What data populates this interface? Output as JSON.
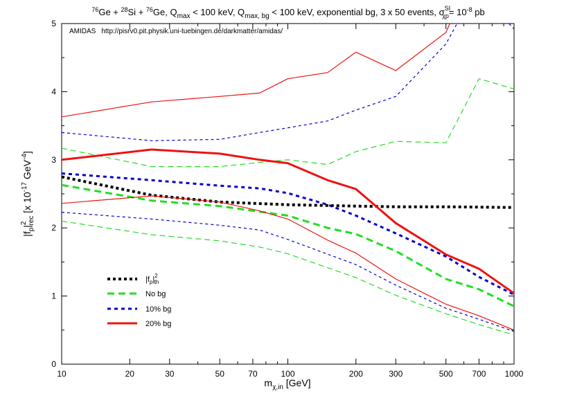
{
  "title": {
    "p1": "76",
    "t1": "Ge + ",
    "p2": "28",
    "t2": "Si + ",
    "p3": "76",
    "t3": "Ge, Q",
    "s1": "max",
    "t4": " < 100 keV, Q",
    "s2": "max, bg",
    "t5": " < 100 keV, exponential bg, 3 x 50 events, σ",
    "sup": "SI",
    "sub": "χp",
    "t6": "= 10",
    "exp": "-8",
    "t7": " pb"
  },
  "annotation": {
    "program": "AMIDAS",
    "url": "http://pisrv0.pit.physik.uni-tuebingen.de/darkmatter/amidas/"
  },
  "xaxis": {
    "label_main": "m",
    "label_sub": "χ,in",
    "label_unit": " [GeV]"
  },
  "yaxis": {
    "label_a": "|f",
    "label_b": "p",
    "label_c": "|",
    "label_sup": "2",
    "label_sub": "rec",
    "label_d": "  [x 10",
    "label_e": "-17",
    "label_f": " GeV",
    "label_g": "-4",
    "label_h": "]"
  },
  "legend": {
    "th_a": "|f",
    "th_b": "p",
    "th_c": "|",
    "th_sup": "2",
    "th_sub": "th",
    "nobg": "No bg",
    "bg10": "10% bg",
    "bg20": "20% bg"
  },
  "colors": {
    "theory": "#000000",
    "nobg": "#22dd22",
    "bg10": "#0000cc",
    "bg20": "#ee1111"
  },
  "chart_data": {
    "type": "line",
    "x_scale": "log",
    "xlim": [
      10,
      1000
    ],
    "ylim": [
      0,
      5
    ],
    "x_ticks": [
      "10",
      "20",
      "30",
      "50",
      "70",
      "100",
      "200",
      "300",
      "500",
      "700",
      "1000"
    ],
    "y_ticks": [
      "0",
      "1",
      "2",
      "3",
      "4",
      "5"
    ],
    "grid": false,
    "legend_position": "bottom-left",
    "series": [
      {
        "name": "theory",
        "style": "dotted",
        "color_key": "theory",
        "band": "central",
        "x": [
          10,
          25,
          50,
          100,
          200,
          300,
          500,
          1000
        ],
        "y": [
          2.75,
          2.48,
          2.38,
          2.34,
          2.32,
          2.31,
          2.31,
          2.3
        ]
      },
      {
        "name": "No bg",
        "style": "dashed",
        "color_key": "nobg",
        "band": "central",
        "x": [
          10,
          25,
          50,
          100,
          150,
          200,
          300,
          500,
          700,
          1000
        ],
        "y": [
          2.63,
          2.4,
          2.32,
          2.18,
          2.0,
          1.91,
          1.66,
          1.25,
          1.1,
          0.85
        ]
      },
      {
        "name": "No bg",
        "style": "dashed",
        "color_key": "nobg",
        "band": "upper",
        "x": [
          10,
          25,
          50,
          75,
          100,
          150,
          200,
          300,
          500,
          700,
          1000
        ],
        "y": [
          3.17,
          2.9,
          2.9,
          2.96,
          3.0,
          2.93,
          3.12,
          3.27,
          3.25,
          4.19,
          4.04
        ]
      },
      {
        "name": "No bg",
        "style": "dashed",
        "color_key": "nobg",
        "band": "lower",
        "x": [
          10,
          25,
          50,
          75,
          100,
          200,
          300,
          500,
          700,
          1000
        ],
        "y": [
          2.1,
          1.9,
          1.81,
          1.72,
          1.62,
          1.27,
          1.01,
          0.74,
          0.58,
          0.43
        ]
      },
      {
        "name": "10% bg",
        "style": "dashed",
        "color_key": "bg10",
        "band": "central",
        "x": [
          10,
          25,
          50,
          75,
          100,
          150,
          200,
          300,
          500,
          700,
          1000
        ],
        "y": [
          2.8,
          2.7,
          2.62,
          2.58,
          2.51,
          2.34,
          2.18,
          1.92,
          1.58,
          1.28,
          1.02
        ]
      },
      {
        "name": "10% bg",
        "style": "dashed",
        "color_key": "bg10",
        "band": "upper",
        "x": [
          10,
          25,
          50,
          75,
          100,
          150,
          200,
          300,
          500,
          560
        ],
        "y": [
          3.4,
          3.28,
          3.3,
          3.4,
          3.47,
          3.57,
          3.73,
          3.93,
          4.7,
          5.0
        ]
      },
      {
        "name": "10% bg",
        "style": "dashed",
        "color_key": "bg10",
        "band": "upper",
        "x": [
          950,
          1000
        ],
        "y": [
          5.0,
          4.92
        ]
      },
      {
        "name": "10% bg",
        "style": "dashed",
        "color_key": "bg10",
        "band": "lower",
        "x": [
          10,
          25,
          50,
          75,
          100,
          200,
          300,
          500,
          700,
          1000
        ],
        "y": [
          2.23,
          2.13,
          2.04,
          1.97,
          1.83,
          1.46,
          1.16,
          0.82,
          0.66,
          0.48
        ]
      },
      {
        "name": "20% bg",
        "style": "solid",
        "color_key": "bg20",
        "band": "central",
        "x": [
          10,
          25,
          50,
          75,
          100,
          150,
          200,
          300,
          500,
          700,
          1000
        ],
        "y": [
          3.0,
          3.15,
          3.09,
          3.0,
          2.95,
          2.7,
          2.57,
          2.07,
          1.61,
          1.4,
          1.04
        ]
      },
      {
        "name": "20% bg",
        "style": "solid",
        "color_key": "bg20",
        "band": "upper",
        "x": [
          10,
          25,
          50,
          75,
          100,
          150,
          200,
          300,
          500,
          520
        ],
        "y": [
          3.63,
          3.85,
          3.93,
          3.98,
          4.19,
          4.28,
          4.58,
          4.31,
          4.87,
          5.0
        ]
      },
      {
        "name": "20% bg",
        "style": "solid",
        "color_key": "bg20",
        "band": "lower",
        "x": [
          10,
          25,
          50,
          75,
          100,
          150,
          200,
          300,
          500,
          700,
          1000
        ],
        "y": [
          2.36,
          2.47,
          2.38,
          2.25,
          2.13,
          1.82,
          1.63,
          1.25,
          0.88,
          0.71,
          0.5
        ]
      }
    ]
  }
}
